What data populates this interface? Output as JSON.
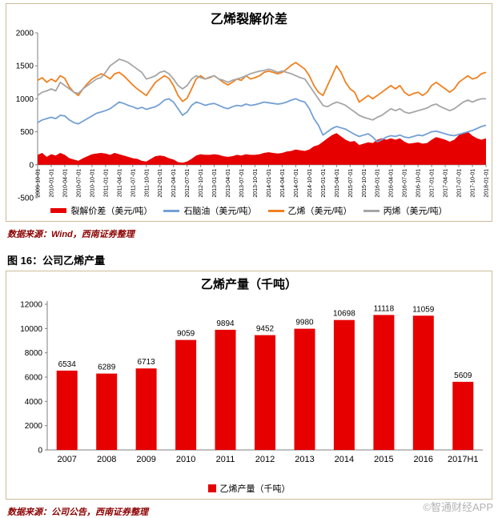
{
  "page": {
    "watermark": "©智通财经APP"
  },
  "figure_heading": "图 16：公司乙烯产量",
  "chart_data": [
    {
      "type": "line",
      "title": "乙烯裂解价差",
      "ylim": [
        -500,
        2000
      ],
      "y_ticks": [
        2000,
        1500,
        1000,
        500,
        0,
        -500
      ],
      "x_tick_every": 3,
      "x_tick_labels": [
        "2009-10-01",
        "2010-01-01",
        "2010-04-01",
        "2010-07-01",
        "2010-10-01",
        "2011-01-01",
        "2011-04-01",
        "2011-07-01",
        "2011-10-01",
        "2012-01-01",
        "2012-04-01",
        "2012-07-01",
        "2012-10-01",
        "2013-01-01",
        "2013-04-01",
        "2013-07-01",
        "2013-10-01",
        "2014-01-01",
        "2014-04-01",
        "2014-07-01",
        "2014-10-01",
        "2015-01-01",
        "2015-04-01",
        "2015-07-01",
        "2015-10-01",
        "2016-01-01",
        "2016-04-01",
        "2016-07-01",
        "2016-10-01",
        "2017-01-01",
        "2017-04-01",
        "2017-07-01",
        "2017-10-01",
        "2018-01-01"
      ],
      "legend_position": "bottom",
      "series": [
        {
          "name": "裂解价差（美元/吨）",
          "style": "area",
          "color": "#e60000",
          "values": [
            150,
            180,
            120,
            160,
            140,
            180,
            150,
            100,
            80,
            60,
            100,
            130,
            160,
            170,
            180,
            170,
            150,
            180,
            160,
            140,
            120,
            100,
            90,
            60,
            50,
            90,
            130,
            140,
            130,
            100,
            80,
            40,
            30,
            50,
            90,
            140,
            160,
            150,
            150,
            160,
            150,
            130,
            120,
            130,
            150,
            140,
            160,
            150,
            150,
            160,
            180,
            190,
            180,
            170,
            180,
            200,
            210,
            230,
            220,
            210,
            230,
            280,
            300,
            350,
            400,
            450,
            480,
            430,
            380,
            350,
            360,
            300,
            320,
            340,
            330,
            380,
            400,
            380,
            400,
            380,
            400,
            350,
            320,
            330,
            340,
            320,
            330,
            380,
            420,
            400,
            380,
            350,
            380,
            450,
            480,
            500,
            440,
            400,
            380,
            400
          ]
        },
        {
          "name": "石脑油（美元/吨）",
          "style": "line",
          "color": "#74a0d4",
          "values": [
            640,
            680,
            700,
            720,
            700,
            750,
            740,
            680,
            640,
            620,
            660,
            700,
            740,
            780,
            800,
            820,
            850,
            900,
            950,
            930,
            900,
            880,
            850,
            870,
            840,
            860,
            880,
            920,
            980,
            1000,
            950,
            850,
            750,
            800,
            900,
            950,
            930,
            900,
            920,
            930,
            900,
            870,
            850,
            880,
            900,
            890,
            920,
            900,
            910,
            930,
            950,
            940,
            930,
            920,
            930,
            950,
            980,
            1000,
            970,
            950,
            850,
            700,
            600,
            450,
            500,
            550,
            580,
            560,
            540,
            500,
            460,
            430,
            450,
            470,
            420,
            350,
            380,
            420,
            440,
            430,
            450,
            420,
            410,
            430,
            450,
            440,
            470,
            500,
            510,
            490,
            470,
            450,
            440,
            460,
            480,
            500,
            520,
            550,
            580,
            600
          ]
        },
        {
          "name": "乙烯（美元/吨）",
          "style": "line",
          "color": "#f08020",
          "values": [
            1280,
            1320,
            1250,
            1300,
            1260,
            1350,
            1310,
            1180,
            1100,
            1050,
            1150,
            1230,
            1300,
            1340,
            1380,
            1350,
            1300,
            1380,
            1400,
            1350,
            1280,
            1210,
            1150,
            1100,
            1050,
            1150,
            1250,
            1300,
            1350,
            1310,
            1200,
            1050,
            960,
            1010,
            1150,
            1300,
            1350,
            1300,
            1320,
            1350,
            1300,
            1250,
            1210,
            1250,
            1300,
            1280,
            1350,
            1300,
            1320,
            1350,
            1400,
            1420,
            1400,
            1380,
            1400,
            1450,
            1510,
            1550,
            1500,
            1450,
            1350,
            1200,
            1100,
            1050,
            1200,
            1350,
            1500,
            1400,
            1250,
            1150,
            1100,
            950,
            1000,
            1050,
            1000,
            1050,
            1100,
            1150,
            1200,
            1150,
            1200,
            1100,
            1050,
            1080,
            1100,
            1050,
            1100,
            1200,
            1250,
            1200,
            1150,
            1100,
            1150,
            1250,
            1300,
            1350,
            1300,
            1320,
            1380,
            1400
          ]
        },
        {
          "name": "丙烯（美元/吨）",
          "style": "line",
          "color": "#a6a6a6",
          "values": [
            1050,
            1100,
            1120,
            1150,
            1120,
            1250,
            1200,
            1150,
            1100,
            1080,
            1150,
            1200,
            1250,
            1300,
            1320,
            1400,
            1500,
            1550,
            1600,
            1580,
            1550,
            1500,
            1450,
            1400,
            1300,
            1320,
            1350,
            1400,
            1420,
            1380,
            1300,
            1200,
            1150,
            1200,
            1300,
            1350,
            1320,
            1300,
            1330,
            1350,
            1300,
            1280,
            1250,
            1280,
            1300,
            1320,
            1350,
            1380,
            1400,
            1420,
            1430,
            1450,
            1430,
            1400,
            1420,
            1400,
            1380,
            1350,
            1320,
            1300,
            1200,
            1100,
            1000,
            900,
            880,
            920,
            950,
            930,
            900,
            850,
            800,
            750,
            720,
            700,
            680,
            720,
            750,
            800,
            850,
            820,
            850,
            800,
            780,
            800,
            820,
            840,
            860,
            900,
            920,
            880,
            850,
            820,
            850,
            900,
            950,
            980,
            950,
            980,
            1000,
            1000
          ]
        }
      ],
      "source": "数据来源：Wind，西南证券整理"
    },
    {
      "type": "bar",
      "title": "乙烯产量（千吨）",
      "categories": [
        "2007",
        "2008",
        "2009",
        "2010",
        "2011",
        "2012",
        "2013",
        "2014",
        "2015",
        "2016",
        "2017H1"
      ],
      "values": [
        6534,
        6289,
        6713,
        9059,
        9894,
        9452,
        9980,
        10698,
        11118,
        11059,
        5609
      ],
      "bar_color": "#e60000",
      "ylim": [
        0,
        12000
      ],
      "y_ticks": [
        0,
        2000,
        4000,
        6000,
        8000,
        10000,
        12000
      ],
      "legend": "乙烯产量（千吨）",
      "legend_position": "bottom",
      "source": "数据来源：公司公告，西南证券整理"
    }
  ]
}
